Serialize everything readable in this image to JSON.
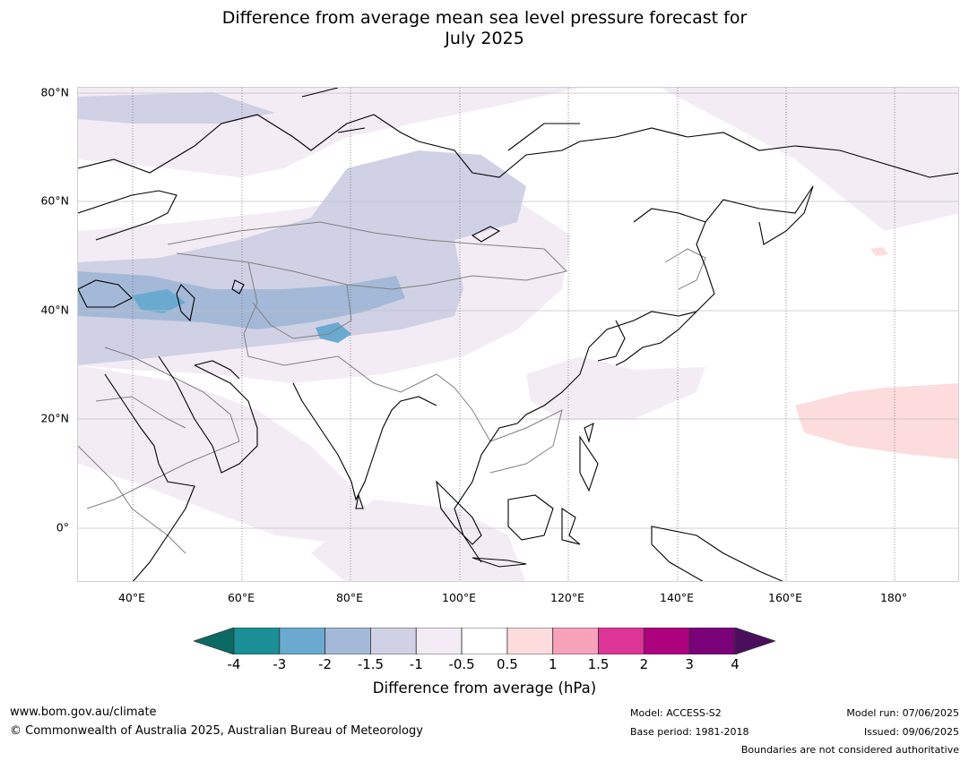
{
  "title": {
    "line1": "Difference from average mean sea level pressure forecast for",
    "line2": "July 2025"
  },
  "map": {
    "lat_labels": [
      "80°N",
      "60°N",
      "40°N",
      "20°N",
      "0°"
    ],
    "lon_labels": [
      "40°E",
      "60°E",
      "80°E",
      "100°E",
      "120°E",
      "140°E",
      "160°E",
      "180°"
    ],
    "colors": {
      "ocean": "#ffffff",
      "coastline": "#000000",
      "border": "#808080",
      "gridline": "#c0c0c0"
    },
    "anomaly_regions": [
      {
        "name": "arctic-ocean-slightly-below",
        "level": "-1 to -0.5"
      },
      {
        "name": "central-siberia-below",
        "level": "-1.5 to -1"
      },
      {
        "name": "caspian-region-below",
        "level": "-2 to -1.5"
      },
      {
        "name": "caucasus-core-below",
        "level": "-3 to -2"
      },
      {
        "name": "western-pacific-above",
        "level": "0.5 to 1"
      }
    ]
  },
  "colorbar": {
    "ticks": [
      "-4",
      "-3",
      "-2",
      "-1.5",
      "-1",
      "-0.5",
      "0.5",
      "1",
      "1.5",
      "2",
      "3",
      "4"
    ],
    "low_extend_color": "#0b6a63",
    "high_extend_color": "#4a0e5c",
    "colors": [
      "#1a8f97",
      "#6aaad0",
      "#a4b9d7",
      "#d0d1e5",
      "#f3ecf5",
      "#ffffff",
      "#fcdcdc",
      "#f7a1bb",
      "#dd3497",
      "#ad017e",
      "#7a0177"
    ],
    "label": "Difference from average (hPa)"
  },
  "footer": {
    "website": "www.bom.gov.au/climate",
    "copyright": "© Commonwealth of Australia 2025, Australian Bureau of Meteorology",
    "model": "Model: ACCESS-S2",
    "base_period": "Base period: 1981-2018",
    "model_run": "Model run: 07/06/2025",
    "issued": "Issued: 09/06/2025",
    "disclaimer": "Boundaries are not considered authoritative"
  }
}
